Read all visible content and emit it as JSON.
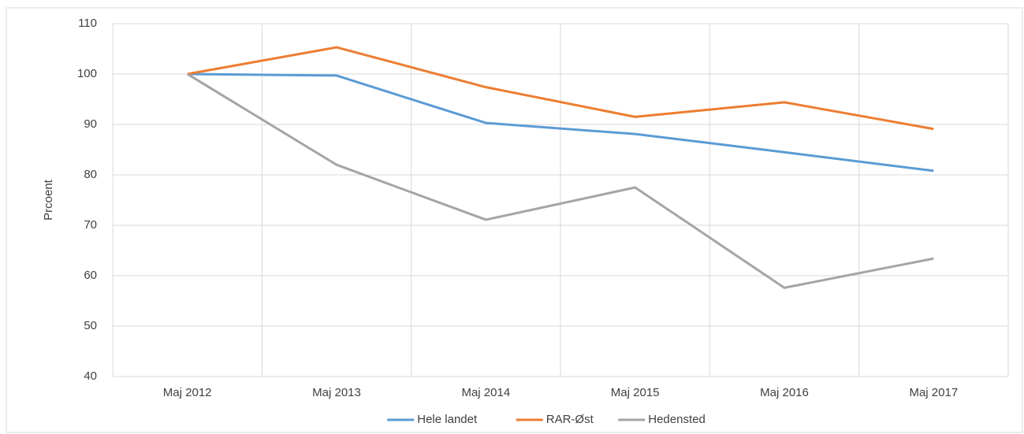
{
  "chart_data": {
    "type": "line",
    "y_label": "Prcoent",
    "categories": [
      "Maj 2012",
      "Maj 2013",
      "Maj 2014",
      "Maj 2015",
      "Maj 2016",
      "Maj 2017"
    ],
    "series": [
      {
        "name": "Hele landet",
        "color": "#5b9bd5",
        "values": [
          100,
          99.7,
          90.3,
          88.1,
          84.5,
          80.8
        ]
      },
      {
        "name": "RAR-Øst",
        "color": "#ed7d31",
        "values": [
          100,
          105.3,
          97.4,
          91.5,
          94.4,
          89.1
        ]
      },
      {
        "name": "Hedensted",
        "color": "#a5a5a5",
        "values": [
          100,
          82,
          71.1,
          77.5,
          57.6,
          63.4
        ]
      }
    ],
    "ylim": [
      40,
      110
    ],
    "yticks": [
      40,
      50,
      60,
      70,
      80,
      90,
      100,
      110
    ],
    "grid": true,
    "legend": "bottom"
  }
}
